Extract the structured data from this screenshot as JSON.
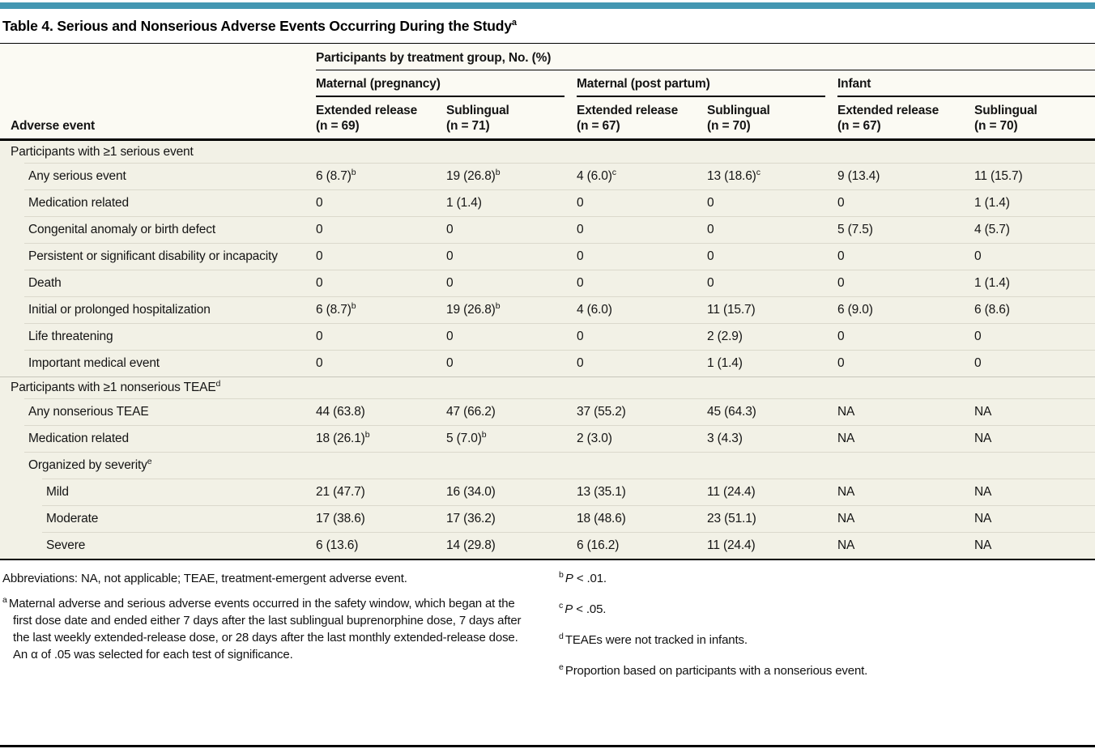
{
  "colors": {
    "accent_teal": "#4497b2",
    "body_cream": "#f2f1e6",
    "header_cream": "#fbfaf3",
    "rule_black": "#000000"
  },
  "title": {
    "text": "Table 4. Serious and Nonserious Adverse Events Occurring During the Study",
    "sup": "a"
  },
  "table": {
    "spanning_header": "Participants by treatment group, No. (%)",
    "row_header": "Adverse event",
    "groups": [
      {
        "label": "Maternal (pregnancy)",
        "columns": [
          {
            "line1": "Extended release",
            "line2": "(n = 69)"
          },
          {
            "line1": "Sublingual",
            "line2": "(n = 71)"
          }
        ]
      },
      {
        "label": "Maternal (post partum)",
        "columns": [
          {
            "line1": "Extended release",
            "line2": "(n = 67)"
          },
          {
            "line1": "Sublingual",
            "line2": "(n = 70)"
          }
        ]
      },
      {
        "label": "Infant",
        "columns": [
          {
            "line1": "Extended release",
            "line2": "(n = 67)"
          },
          {
            "line1": "Sublingual",
            "line2": "(n = 70)"
          }
        ]
      }
    ],
    "rows": [
      {
        "type": "section",
        "label": "Participants with ≥1 serious event",
        "sup": "",
        "values": []
      },
      {
        "type": "item",
        "label": "Any serious event",
        "sup": "",
        "values": [
          {
            "v": "6 (8.7)",
            "s": "b"
          },
          {
            "v": "19 (26.8)",
            "s": "b"
          },
          {
            "v": "4 (6.0)",
            "s": "c"
          },
          {
            "v": "13 (18.6)",
            "s": "c"
          },
          {
            "v": "9 (13.4)"
          },
          {
            "v": "11 (15.7)"
          }
        ]
      },
      {
        "type": "item",
        "label": "Medication related",
        "sup": "",
        "values": [
          {
            "v": "0"
          },
          {
            "v": "1 (1.4)"
          },
          {
            "v": "0"
          },
          {
            "v": "0"
          },
          {
            "v": "0"
          },
          {
            "v": "1 (1.4)"
          }
        ]
      },
      {
        "type": "item",
        "label": "Congenital anomaly or birth defect",
        "sup": "",
        "values": [
          {
            "v": "0"
          },
          {
            "v": "0"
          },
          {
            "v": "0"
          },
          {
            "v": "0"
          },
          {
            "v": "5 (7.5)"
          },
          {
            "v": "4 (5.7)"
          }
        ]
      },
      {
        "type": "item",
        "label": "Persistent or significant disability or incapacity",
        "sup": "",
        "values": [
          {
            "v": "0"
          },
          {
            "v": "0"
          },
          {
            "v": "0"
          },
          {
            "v": "0"
          },
          {
            "v": "0"
          },
          {
            "v": "0"
          }
        ]
      },
      {
        "type": "item",
        "label": "Death",
        "sup": "",
        "values": [
          {
            "v": "0"
          },
          {
            "v": "0"
          },
          {
            "v": "0"
          },
          {
            "v": "0"
          },
          {
            "v": "0"
          },
          {
            "v": "1 (1.4)"
          }
        ]
      },
      {
        "type": "item",
        "label": "Initial or prolonged hospitalization",
        "sup": "",
        "values": [
          {
            "v": "6 (8.7)",
            "s": "b"
          },
          {
            "v": "19 (26.8)",
            "s": "b"
          },
          {
            "v": "4 (6.0)"
          },
          {
            "v": "11 (15.7)"
          },
          {
            "v": "6 (9.0)"
          },
          {
            "v": "6 (8.6)"
          }
        ]
      },
      {
        "type": "item",
        "label": "Life threatening",
        "sup": "",
        "values": [
          {
            "v": "0"
          },
          {
            "v": "0"
          },
          {
            "v": "0"
          },
          {
            "v": "2 (2.9)"
          },
          {
            "v": "0"
          },
          {
            "v": "0"
          }
        ]
      },
      {
        "type": "item",
        "label": "Important medical event",
        "sup": "",
        "values": [
          {
            "v": "0"
          },
          {
            "v": "0"
          },
          {
            "v": "0"
          },
          {
            "v": "1 (1.4)"
          },
          {
            "v": "0"
          },
          {
            "v": "0"
          }
        ]
      },
      {
        "type": "section",
        "label": "Participants with ≥1 nonserious TEAE",
        "sup": "d",
        "values": []
      },
      {
        "type": "item",
        "label": "Any nonserious TEAE",
        "sup": "",
        "values": [
          {
            "v": "44 (63.8)"
          },
          {
            "v": "47 (66.2)"
          },
          {
            "v": "37 (55.2)"
          },
          {
            "v": "45 (64.3)"
          },
          {
            "v": "NA"
          },
          {
            "v": "NA"
          }
        ]
      },
      {
        "type": "item",
        "label": "Medication related",
        "sup": "",
        "values": [
          {
            "v": "18 (26.1)",
            "s": "b"
          },
          {
            "v": "5 (7.0)",
            "s": "b"
          },
          {
            "v": "2 (3.0)"
          },
          {
            "v": "3 (4.3)"
          },
          {
            "v": "NA"
          },
          {
            "v": "NA"
          }
        ]
      },
      {
        "type": "item",
        "label": "Organized by severity",
        "sup": "e",
        "values": []
      },
      {
        "type": "subitem",
        "label": "Mild",
        "sup": "",
        "values": [
          {
            "v": "21 (47.7)"
          },
          {
            "v": "16 (34.0)"
          },
          {
            "v": "13 (35.1)"
          },
          {
            "v": "11 (24.4)"
          },
          {
            "v": "NA"
          },
          {
            "v": "NA"
          }
        ]
      },
      {
        "type": "subitem",
        "label": "Moderate",
        "sup": "",
        "values": [
          {
            "v": "17 (38.6)"
          },
          {
            "v": "17 (36.2)"
          },
          {
            "v": "18 (48.6)"
          },
          {
            "v": "23 (51.1)"
          },
          {
            "v": "NA"
          },
          {
            "v": "NA"
          }
        ]
      },
      {
        "type": "subitem",
        "label": "Severe",
        "sup": "",
        "values": [
          {
            "v": "6 (13.6)"
          },
          {
            "v": "14 (29.8)"
          },
          {
            "v": "6 (16.2)"
          },
          {
            "v": "11 (24.4)"
          },
          {
            "v": "NA"
          },
          {
            "v": "NA"
          }
        ]
      }
    ]
  },
  "footnotes": {
    "left": [
      {
        "marker": "",
        "text": "Abbreviations: NA, not applicable; TEAE, treatment-emergent adverse event."
      },
      {
        "marker": "a",
        "text": "Maternal adverse and serious adverse events occurred in the safety window, which began at the first dose date and ended either 7 days after the last sublingual buprenorphine dose, 7 days after the last weekly extended-release dose, or 28 days after the last monthly extended-release dose. An α of .05 was selected for each test of significance."
      }
    ],
    "right": [
      {
        "marker": "b",
        "italic": "P",
        "rest": " < .01."
      },
      {
        "marker": "c",
        "italic": "P",
        "rest": " < .05."
      },
      {
        "marker": "d",
        "italic": "",
        "rest": "TEAEs were not tracked in infants."
      },
      {
        "marker": "e",
        "italic": "",
        "rest": "Proportion based on participants with a nonserious event."
      }
    ]
  }
}
